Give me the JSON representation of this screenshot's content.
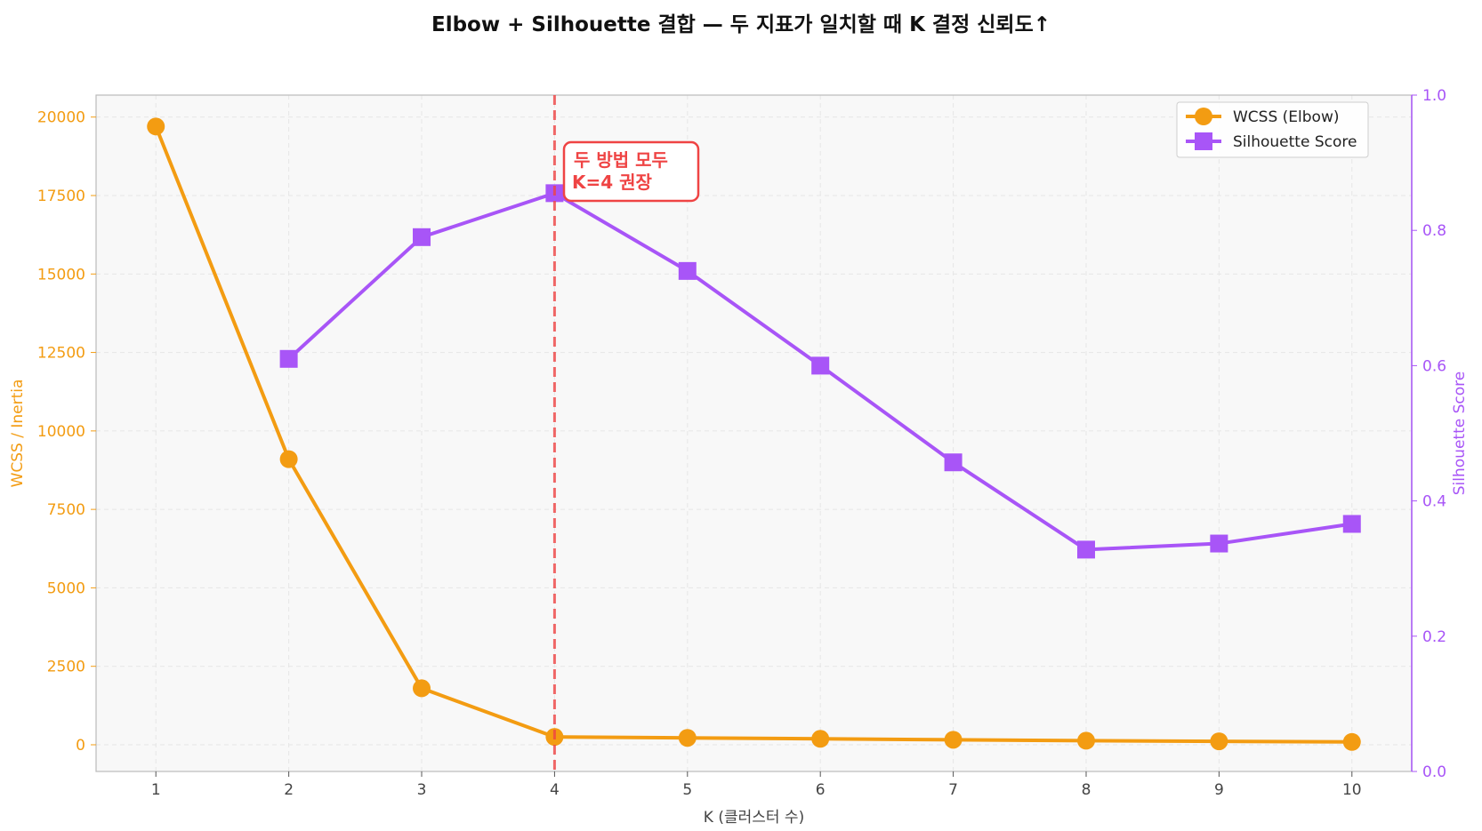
{
  "colors": {
    "wcss": "#f39c12",
    "silhouette": "#a855f7",
    "annotation": "#ef4444",
    "plot_bg": "#f8f8f8",
    "grid": "#e6e6e6"
  },
  "chart_data": {
    "type": "line",
    "title": "Elbow + Silhouette 결합 — 두 지표가 일치할 때 K 결정 신뢰도↑",
    "xlabel": "K (클러스터 수)",
    "ylabel_left": "WCSS / Inertia",
    "ylabel_right": "Silhouette Score",
    "x": [
      1,
      2,
      3,
      4,
      5,
      6,
      7,
      8,
      9,
      10
    ],
    "xlim": [
      0.55,
      10.45
    ],
    "ylim_left": [
      -850,
      20700
    ],
    "ylim_right": [
      0,
      1
    ],
    "yticks_left": [
      0,
      2500,
      5000,
      7500,
      10000,
      12500,
      15000,
      17500,
      20000
    ],
    "yticks_right": [
      0.0,
      0.2,
      0.4,
      0.6,
      0.8,
      1.0
    ],
    "grid": true,
    "legend_position": "top-right",
    "series": [
      {
        "name": "WCSS (Elbow)",
        "axis": "left",
        "marker": "circle",
        "x": [
          1,
          2,
          3,
          4,
          5,
          6,
          7,
          8,
          9,
          10
        ],
        "values": [
          19700,
          9100,
          1800,
          250,
          220,
          190,
          160,
          130,
          110,
          90
        ]
      },
      {
        "name": "Silhouette Score",
        "axis": "right",
        "marker": "square",
        "x": [
          2,
          3,
          4,
          5,
          6,
          7,
          8,
          9,
          10
        ],
        "values": [
          0.61,
          0.79,
          0.855,
          0.74,
          0.6,
          0.457,
          0.328,
          0.337,
          0.366
        ]
      }
    ],
    "vline": {
      "x": 4
    },
    "annotation": {
      "lines": [
        "두 방법 모두",
        "K=4 권장"
      ]
    }
  }
}
